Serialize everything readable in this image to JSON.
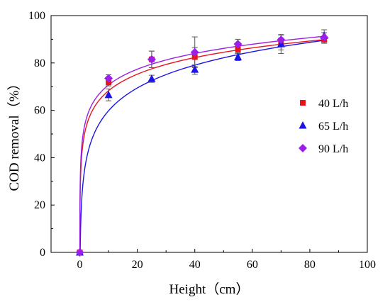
{
  "chart_data": {
    "type": "scatter",
    "title": "",
    "xlabel": "Height（cm）",
    "ylabel": "COD removal（%）",
    "xlim": [
      -10,
      100
    ],
    "ylim": [
      0,
      100
    ],
    "xticks": [
      0,
      20,
      40,
      60,
      80,
      100
    ],
    "yticks": [
      0,
      20,
      40,
      60,
      80,
      100
    ],
    "grid": false,
    "legend_position": "right",
    "series": [
      {
        "name": "40 L/h",
        "color": "#e8141c",
        "marker": "square",
        "x": [
          0,
          10,
          25,
          40,
          55,
          70,
          85
        ],
        "y": [
          0,
          71.8,
          81.5,
          82.5,
          85.8,
          88.0,
          89.8
        ],
        "err": [
          0,
          1.5,
          3.5,
          4.0,
          1.5,
          4.0,
          1.5
        ],
        "fit": {
          "model": "y = a + b*ln(x)",
          "a": 45.0,
          "b": 10.1
        }
      },
      {
        "name": "65 L/h",
        "color": "#1a14e6",
        "marker": "triangle",
        "x": [
          0,
          10,
          25,
          40,
          55,
          70,
          85
        ],
        "y": [
          0,
          66.5,
          73.3,
          77.2,
          82.5,
          88.0,
          91.5
        ],
        "err": [
          0,
          2.5,
          1.5,
          2.0,
          1.5,
          2.5,
          2.5
        ],
        "fit": {
          "model": "y = a + b*ln(x)",
          "a": 27.8,
          "b": 13.9
        }
      },
      {
        "name": "90 L/h",
        "color": "#9b1fe8",
        "marker": "diamond",
        "x": [
          0,
          10,
          25,
          40,
          55,
          70,
          85
        ],
        "y": [
          0,
          73.5,
          81.5,
          84.5,
          88.0,
          89.8,
          90.8
        ],
        "err": [
          0,
          1.5,
          3.5,
          6.5,
          2.0,
          2.0,
          2.0
        ],
        "fit": {
          "model": "y = a + b*ln(x)",
          "a": 48.6,
          "b": 9.6
        }
      }
    ]
  }
}
